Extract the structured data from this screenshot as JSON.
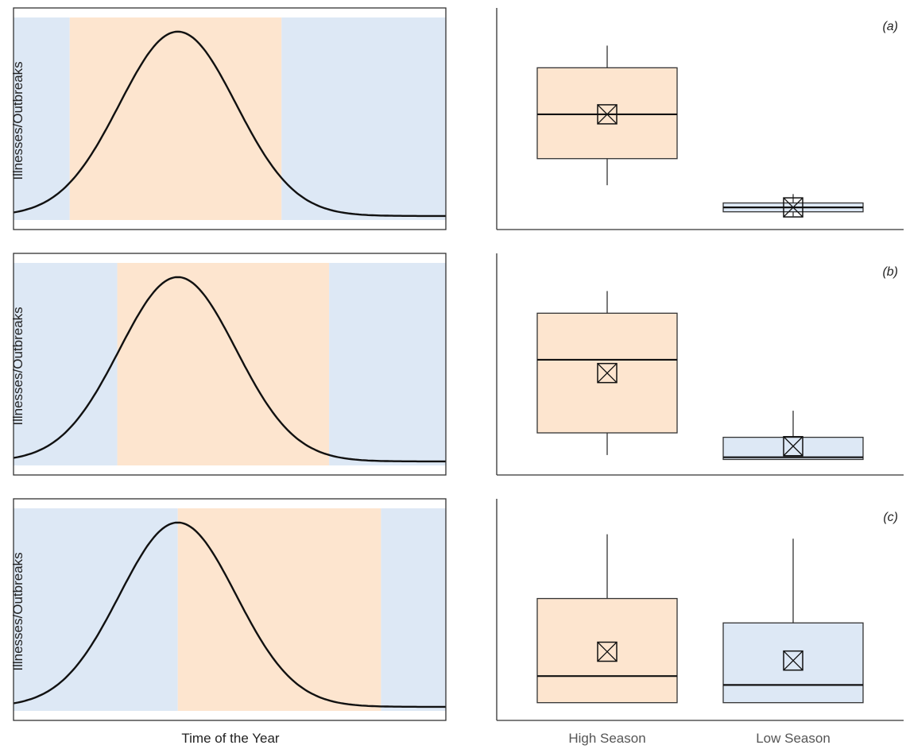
{
  "colors": {
    "high_season": "#fde5cf",
    "low_season": "#dde8f5",
    "line": "#111111",
    "frame": "#333333"
  },
  "figure": {
    "x_axis_label": "Time of the Year",
    "y_axis_label": "Illnesses/Outbreaks"
  },
  "chart_data": [
    {
      "type": "line",
      "panel": "(a)",
      "xlabel": "",
      "ylabel": "Illnesses/Outbreaks",
      "curve": {
        "peak_x": 0.38,
        "width": 0.135,
        "peak": 0.93,
        "base": 0.02
      },
      "high_season_span": [
        0.13,
        0.62
      ]
    },
    {
      "type": "box",
      "panel": "(a)",
      "label": "(a)",
      "categories": [
        "High Season",
        "Low Season"
      ],
      "ylim": [
        0,
        1
      ],
      "boxes": [
        {
          "name": "High Season",
          "min": 0.2,
          "q1": 0.32,
          "median": 0.52,
          "q3": 0.73,
          "max": 0.83,
          "mean": 0.52
        },
        {
          "name": "Low Season",
          "min": 0.06,
          "q1": 0.08,
          "median": 0.1,
          "q3": 0.12,
          "max": 0.16,
          "mean": 0.1
        }
      ]
    },
    {
      "type": "line",
      "panel": "(b)",
      "xlabel": "",
      "ylabel": "Illnesses/Outbreaks",
      "curve": {
        "peak_x": 0.38,
        "width": 0.135,
        "peak": 0.93,
        "base": 0.02
      },
      "high_season_span": [
        0.24,
        0.73
      ]
    },
    {
      "type": "box",
      "panel": "(b)",
      "label": "(b)",
      "categories": [
        "High Season",
        "Low Season"
      ],
      "ylim": [
        0,
        1
      ],
      "boxes": [
        {
          "name": "High Season",
          "min": 0.09,
          "q1": 0.19,
          "median": 0.52,
          "q3": 0.73,
          "max": 0.83,
          "mean": 0.46
        },
        {
          "name": "Low Season",
          "min": 0.07,
          "q1": 0.07,
          "median": 0.08,
          "q3": 0.17,
          "max": 0.29,
          "mean": 0.13
        }
      ]
    },
    {
      "type": "line",
      "panel": "(c)",
      "xlabel": "Time of the Year",
      "ylabel": "Illnesses/Outbreaks",
      "curve": {
        "peak_x": 0.38,
        "width": 0.135,
        "peak": 0.93,
        "base": 0.02
      },
      "high_season_span": [
        0.38,
        0.85
      ]
    },
    {
      "type": "box",
      "panel": "(c)",
      "label": "(c)",
      "categories": [
        "High Season",
        "Low Season"
      ],
      "ylim": [
        0,
        1
      ],
      "boxes": [
        {
          "name": "High Season",
          "min": 0.08,
          "q1": 0.08,
          "median": 0.2,
          "q3": 0.55,
          "max": 0.84,
          "mean": 0.31
        },
        {
          "name": "Low Season",
          "min": 0.08,
          "q1": 0.08,
          "median": 0.16,
          "q3": 0.44,
          "max": 0.82,
          "mean": 0.27
        }
      ]
    }
  ]
}
